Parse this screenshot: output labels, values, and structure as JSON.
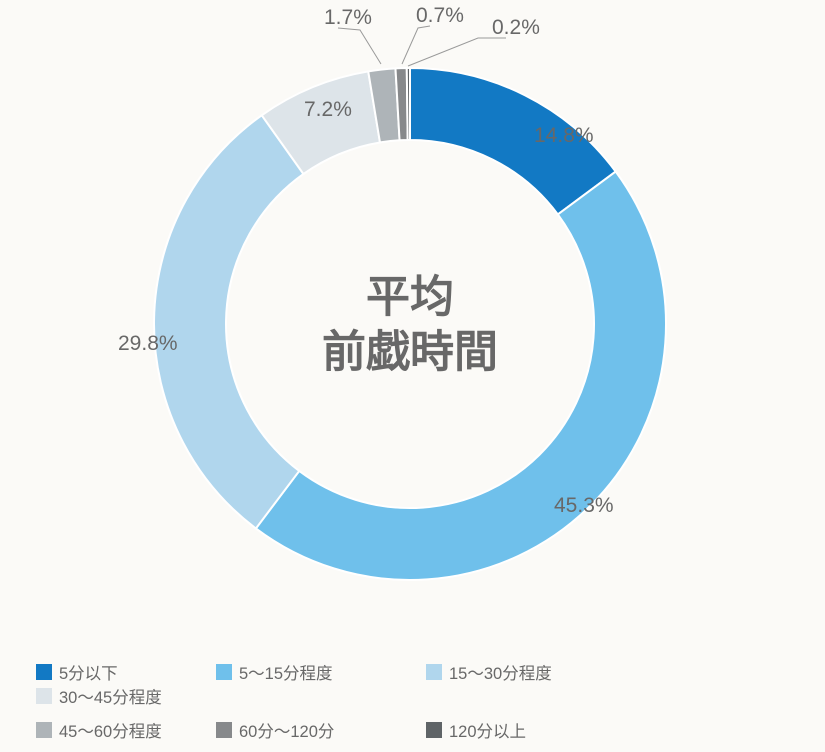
{
  "chart": {
    "type": "donut",
    "center_title_line1": "平均",
    "center_title_line2": "前戯時間",
    "center_title_color": "#686868",
    "center_title_fontsize": 44,
    "background_color": "#fbfaf7",
    "outer_radius": 256,
    "inner_radius": 184,
    "stroke_color": "#ffffff",
    "stroke_width": 2,
    "label_color": "#686868",
    "label_fontsize": 21,
    "legend_fontsize": 16.5,
    "legend_swatch_size": 16,
    "slices": [
      {
        "label": "5分以下",
        "value": 14.8,
        "pct": "14.8%",
        "color": "#1279c4"
      },
      {
        "label": "5～15分程度",
        "value": 45.3,
        "pct": "45.3%",
        "color": "#6fc0eb"
      },
      {
        "label": "15～30分程度",
        "value": 29.8,
        "pct": "29.8%",
        "color": "#b0d6ed"
      },
      {
        "label": "30～45分程度",
        "value": 7.2,
        "pct": "7.2%",
        "color": "#dde4e9"
      },
      {
        "label": "45～60分程度",
        "value": 1.7,
        "pct": "1.7%",
        "color": "#aeb4b8"
      },
      {
        "label": "60分～120分",
        "value": 0.7,
        "pct": "0.7%",
        "color": "#87898b"
      },
      {
        "label": "120分以上",
        "value": 0.2,
        "pct": "0.2%",
        "color": "#5f6467"
      }
    ],
    "legend_rows": [
      [
        0,
        1,
        2,
        3
      ],
      [
        4,
        5,
        6
      ]
    ],
    "legend_col_widths": [
      180,
      210,
      215,
      175
    ]
  }
}
